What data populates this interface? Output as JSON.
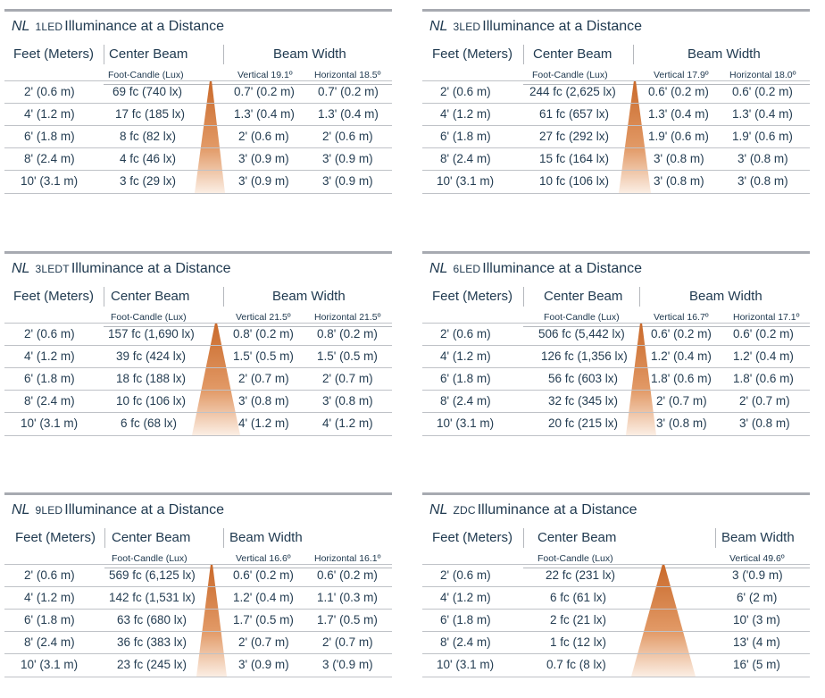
{
  "tables": [
    {
      "nl": "NL",
      "model": "1LED",
      "title": "Illuminance at a Distance",
      "h1": "Feet (Meters)",
      "h2": "Center Beam",
      "h3": "Beam Width",
      "s2": "Foot-Candle (Lux)",
      "sv": "Vertical 19.1º",
      "sh": "Horizontal 18.5º",
      "rows": [
        {
          "d": "2' (0.6 m)",
          "c": "69 fc (740 lx)",
          "v": "0.7' (0.2 m)",
          "h": "0.7' (0.2 m)"
        },
        {
          "d": "4' (1.2 m)",
          "c": "17 fc (185 lx)",
          "v": "1.3' (0.4 m)",
          "h": "1.3' (0.4 m)"
        },
        {
          "d": "6' (1.8 m)",
          "c": "8 fc (82 lx)",
          "v": "2' (0.6 m)",
          "h": "2' (0.6 m)"
        },
        {
          "d": "8' (2.4 m)",
          "c": "4 fc (46 lx)",
          "v": "3' (0.9 m)",
          "h": "3' (0.9 m)"
        },
        {
          "d": "10' (3.1 m)",
          "c": "3 fc (29 lx)",
          "v": "3' (0.9 m)",
          "h": "3' (0.9 m)"
        }
      ]
    },
    {
      "nl": "NL",
      "model": "3LED",
      "title": "Illuminance at a Distance",
      "h1": "Feet (Meters)",
      "h2": "Center Beam",
      "h3": "Beam Width",
      "s2": "Foot-Candle (Lux)",
      "sv": "Vertical 17.9º",
      "sh": "Horizontal 18.0º",
      "rows": [
        {
          "d": "2' (0.6 m)",
          "c": "244 fc (2,625 lx)",
          "v": "0.6' (0.2 m)",
          "h": "0.6' (0.2 m)"
        },
        {
          "d": "4' (1.2 m)",
          "c": "61 fc (657 lx)",
          "v": "1.3' (0.4 m)",
          "h": "1.3' (0.4 m)"
        },
        {
          "d": "6' (1.8 m)",
          "c": "27 fc (292 lx)",
          "v": "1.9' (0.6 m)",
          "h": "1.9' (0.6 m)"
        },
        {
          "d": "8' (2.4 m)",
          "c": "15 fc (164 lx)",
          "v": "3' (0.8 m)",
          "h": "3' (0.8 m)"
        },
        {
          "d": "10' (3.1 m)",
          "c": "10 fc (106 lx)",
          "v": "3' (0.8 m)",
          "h": "3' (0.8 m)"
        }
      ]
    },
    {
      "nl": "NL",
      "model": "3LEDT",
      "title": "Illuminance at a Distance",
      "h1": "Feet (Meters)",
      "h2": "Center Beam",
      "h3": "Beam Width",
      "s2": "Foot-Candle (Lux)",
      "sv": "Vertical 21.5º",
      "sh": "Horizontal 21.5º",
      "rows": [
        {
          "d": "2' (0.6 m)",
          "c": "157 fc (1,690 lx)",
          "v": "0.8' (0.2 m)",
          "h": "0.8' (0.2 m)"
        },
        {
          "d": "4' (1.2 m)",
          "c": "39 fc (424 lx)",
          "v": "1.5' (0.5 m)",
          "h": "1.5' (0.5 m)"
        },
        {
          "d": "6' (1.8 m)",
          "c": "18 fc (188 lx)",
          "v": "2' (0.7 m)",
          "h": "2' (0.7 m)"
        },
        {
          "d": "8' (2.4 m)",
          "c": "10 fc (106 lx)",
          "v": "3' (0.8 m)",
          "h": "3' (0.8 m)"
        },
        {
          "d": "10' (3.1 m)",
          "c": "6 fc (68 lx)",
          "v": "4' (1.2 m)",
          "h": "4' (1.2 m)"
        }
      ]
    },
    {
      "nl": "NL",
      "model": "6LED",
      "title": "Illuminance at a Distance",
      "h1": "Feet (Meters)",
      "h2": "Center Beam",
      "h3": "Beam Width",
      "s2": "Foot-Candle (Lux)",
      "sv": "Vertical 16.7º",
      "sh": "Horizontal 17.1º",
      "rows": [
        {
          "d": "2' (0.6 m)",
          "c": "506 fc (5,442 lx)",
          "v": "0.6' (0.2 m)",
          "h": "0.6' (0.2 m)"
        },
        {
          "d": "4' (1.2 m)",
          "c": "126 fc (1,356 lx)",
          "v": "1.2' (0.4 m)",
          "h": "1.2' (0.4 m)"
        },
        {
          "d": "6' (1.8 m)",
          "c": "56 fc (603 lx)",
          "v": "1.8' (0.6 m)",
          "h": "1.8' (0.6 m)"
        },
        {
          "d": "8' (2.4 m)",
          "c": "32 fc (345 lx)",
          "v": "2' (0.7 m)",
          "h": "2' (0.7 m)"
        },
        {
          "d": "10' (3.1 m)",
          "c": "20 fc (215 lx)",
          "v": "3' (0.8 m)",
          "h": "3' (0.8 m)"
        }
      ]
    },
    {
      "nl": "NL",
      "model": "9LED",
      "title": "Illuminance at a Distance",
      "h1": "Feet (Meters)",
      "h2": "Center Beam",
      "h3": "Beam Width",
      "s2": "Foot-Candle (Lux)",
      "sv": "Vertical 16.6º",
      "sh": "Horizontal 16.1º",
      "rows": [
        {
          "d": "2' (0.6 m)",
          "c": "569 fc (6,125 lx)",
          "v": "0.6' (0.2 m)",
          "h": "0.6' (0.2 m)"
        },
        {
          "d": "4' (1.2 m)",
          "c": "142 fc (1,531 lx)",
          "v": "1.2' (0.4 m)",
          "h": "1.1' (0.3 m)"
        },
        {
          "d": "6' (1.8 m)",
          "c": "63 fc (680 lx)",
          "v": "1.7' (0.5 m)",
          "h": "1.7' (0.5 m)"
        },
        {
          "d": "8' (2.4 m)",
          "c": "36 fc (383 lx)",
          "v": "2' (0.7 m)",
          "h": "2' (0.7 m)"
        },
        {
          "d": "10' (3.1 m)",
          "c": "23 fc (245 lx)",
          "v": "3' (0.9 m)",
          "h": "3 ('0.9 m)"
        }
      ]
    },
    {
      "nl": "NL",
      "model": "ZDC",
      "title": "Illuminance at a Distance",
      "h1": "Feet (Meters)",
      "h2": "Center Beam",
      "h3": "Beam Width",
      "s2": "Foot-Candle (Lux)",
      "sv": "Vertical 49.6º",
      "rows": [
        {
          "d": "2' (0.6 m)",
          "c": "22 fc (231 lx)",
          "v": "3 ('0.9 m)"
        },
        {
          "d": "4' (1.2 m)",
          "c": "6 fc (61 lx)",
          "v": "6' (2 m)"
        },
        {
          "d": "6' (1.8 m)",
          "c": "2 fc (21 lx)",
          "v": "10' (3 m)"
        },
        {
          "d": "8' (2.4 m)",
          "c": "1 fc (12 lx)",
          "v": "13' (4 m)"
        },
        {
          "d": "10' (3.1 m)",
          "c": "0.7 fc (8 lx)",
          "v": "16' (5 m)"
        }
      ]
    }
  ],
  "colors": {
    "beam_top": "#c9692a",
    "beam_bottom": "#fbeee4",
    "rule": "#a7aab1",
    "text": "#1b3349"
  }
}
